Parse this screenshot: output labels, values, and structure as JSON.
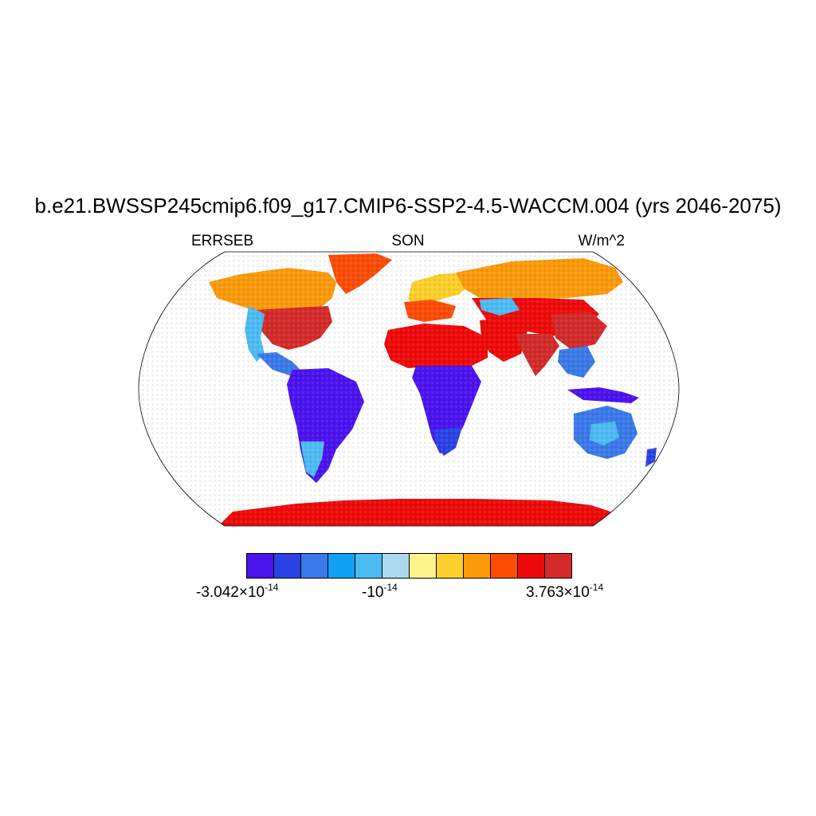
{
  "title": "b.e21.BWSSP245cmip6.f09_g17.CMIP6-SSP2-4.5-WACCM.004 (yrs 2046-2075)",
  "left_label": "ERRSEB",
  "center_label": "SON",
  "right_label": "W/m^2",
  "colorbar": {
    "colors": [
      "#4b12f0",
      "#2b42e4",
      "#3a79ea",
      "#12a0f5",
      "#4cbcf3",
      "#a9d8ef",
      "#fef28c",
      "#fccf2b",
      "#fc9a0a",
      "#fc4c06",
      "#ee0a0a",
      "#d42a2a"
    ],
    "labels": {
      "min_mantissa": "-3.042",
      "min_exponent": "-14",
      "mid_base": "-10",
      "mid_exponent": "-14",
      "max_mantissa": "3.763",
      "max_exponent": "-14",
      "times": "×",
      "ten": "10"
    }
  },
  "map": {
    "projection": "Robinson",
    "regions": [
      {
        "name": "north-america-north",
        "level": 8
      },
      {
        "name": "north-america-east",
        "level": 11
      },
      {
        "name": "central-america",
        "level": 2
      },
      {
        "name": "greenland",
        "level": 10
      },
      {
        "name": "south-america",
        "level": 0
      },
      {
        "name": "europe",
        "level": 7
      },
      {
        "name": "sahara",
        "level": 10
      },
      {
        "name": "arabia",
        "level": 10
      },
      {
        "name": "central-africa",
        "level": 0
      },
      {
        "name": "southern-africa",
        "level": 1
      },
      {
        "name": "russia",
        "level": 8
      },
      {
        "name": "central-asia",
        "level": 10
      },
      {
        "name": "india",
        "level": 11
      },
      {
        "name": "southeast-asia",
        "level": 2
      },
      {
        "name": "indonesia",
        "level": 0
      },
      {
        "name": "australia",
        "level": 2
      },
      {
        "name": "antarctica",
        "level": 10
      }
    ]
  }
}
